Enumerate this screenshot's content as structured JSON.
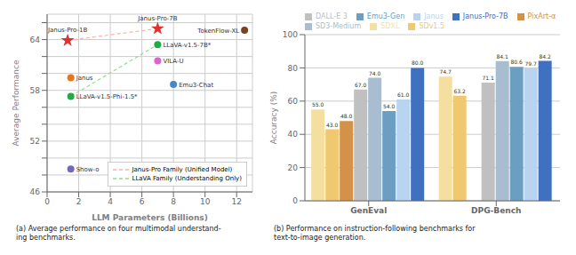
{
  "chart_data": [
    {
      "type": "scatter",
      "subtitle": "(a) Average performance on four multimodal understand-\ning benchmarks.",
      "x_label": "LLM Parameters (Billions)",
      "y_label": "Average Performance",
      "points": [
        {
          "label": "Janus-Pro-7B",
          "x": 7.0,
          "y": 65.3,
          "color": "#e03030",
          "marker": "star"
        },
        {
          "label": "Janus-Pro-1B",
          "x": 1.3,
          "y": 63.9,
          "color": "#e03030",
          "marker": "star"
        },
        {
          "label": "Janus",
          "x": 1.5,
          "y": 59.5,
          "color": "#e07820",
          "marker": "circle"
        },
        {
          "label": "LLaVA-v1.5-7B*",
          "x": 7.0,
          "y": 63.4,
          "color": "#22aa44",
          "marker": "circle"
        },
        {
          "label": "LLaVA-v1.5-Phi-1.5*",
          "x": 1.5,
          "y": 57.3,
          "color": "#22aa44",
          "marker": "circle"
        },
        {
          "label": "VILA-U",
          "x": 7.0,
          "y": 61.5,
          "color": "#d966cc",
          "marker": "circle"
        },
        {
          "label": "Emu3-Chat",
          "x": 8.0,
          "y": 58.7,
          "color": "#4488cc",
          "marker": "circle"
        },
        {
          "label": "TokenFlow-XL",
          "x": 12.5,
          "y": 65.1,
          "color": "#7a4422",
          "marker": "circle"
        },
        {
          "label": "Show-o",
          "x": 1.5,
          "y": 48.7,
          "color": "#7766bb",
          "marker": "circle"
        }
      ],
      "series": [
        {
          "name": "Janus-Pro Family (Unified Model)",
          "type": "line",
          "color": "#ffb0b0",
          "line_style": "dashed",
          "x": [
            1.3,
            7.0
          ],
          "y": [
            63.9,
            65.3
          ]
        },
        {
          "name": "LLaVA Family (Understanding Only)",
          "type": "line",
          "color": "#90dd90",
          "line_style": "dashed",
          "x": [
            1.5,
            7.0
          ],
          "y": [
            57.3,
            63.4
          ]
        }
      ],
      "xlim": [
        0,
        13
      ],
      "ylim": [
        46,
        67
      ],
      "xticks": [
        0,
        2,
        4,
        6,
        8,
        10,
        12
      ],
      "yticks": [
        46,
        {
          "value": 48,
          "label": ""
        },
        {
          "value": 50,
          "label": ""
        },
        52,
        {
          "value": 54,
          "label": ""
        },
        {
          "value": 56,
          "label": ""
        },
        58,
        {
          "value": 60,
          "label": ""
        },
        {
          "value": 62,
          "label": ""
        },
        64,
        {
          "value": 66,
          "label": ""
        }
      ],
      "grid": true,
      "legend": "lower right"
    },
    {
      "type": "bar",
      "subtitle": "(b) Performance on instruction-following benchmarks for\ntext-to-image generation.",
      "y_label": "Accuracy (%)",
      "categories": [
        "GenEval",
        "DPG-Bench"
      ],
      "series": [
        {
          "name": "SDXL",
          "color": "#f5dfa0",
          "values": [
            55.0,
            74.7
          ],
          "value_labels": [
            "55.0",
            "74.7"
          ]
        },
        {
          "name": "SDv1.5",
          "color": "#f0c870",
          "values": [
            43.0,
            63.2
          ],
          "value_labels": [
            "43.0",
            "63.2"
          ]
        },
        {
          "name": "PixArt-α",
          "color": "#d4914a",
          "values": [
            48.0,
            null
          ],
          "value_labels": [
            "48.0",
            null
          ]
        },
        {
          "name": "DALL-E 3",
          "color": "#c0c0c0",
          "values": [
            67.0,
            71.1
          ],
          "value_labels": [
            "67.0",
            "71.1"
          ]
        },
        {
          "name": "SD3-Medium",
          "color": "#a8bdd0",
          "values": [
            74.0,
            84.1
          ],
          "value_labels": [
            "74.0",
            "84.1"
          ]
        },
        {
          "name": "Emu3-Gen",
          "color": "#6b9ec0",
          "values": [
            54.0,
            80.6
          ],
          "value_labels": [
            "54.0",
            "80.6"
          ]
        },
        {
          "name": "Janus",
          "color": "#b8d4f0",
          "values": [
            61.0,
            79.7
          ],
          "value_labels": [
            "61.0",
            "79.7"
          ]
        },
        {
          "name": "Janus-Pro-7B",
          "color": "#4070c0",
          "values": [
            80.0,
            84.2
          ],
          "value_labels": [
            "80.0",
            "84.2"
          ]
        }
      ],
      "ylim": [
        0,
        100
      ],
      "yticks": [
        0,
        20,
        40,
        60,
        80,
        100
      ],
      "grid": "y",
      "data_labels": true,
      "legend": "upper left"
    }
  ]
}
